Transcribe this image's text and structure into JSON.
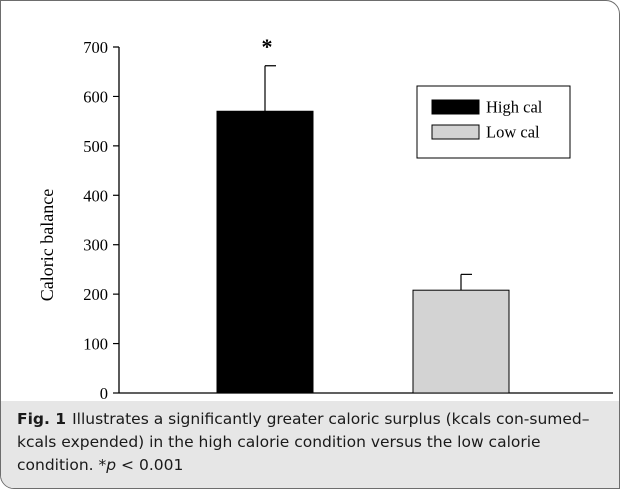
{
  "chart_data": {
    "type": "bar",
    "categories": [
      "High cal",
      "Low cal"
    ],
    "values": [
      570,
      208
    ],
    "errors": [
      92,
      32
    ],
    "colors": [
      "#000000",
      "#d3d3d3"
    ],
    "ylabel": "Caloric balance",
    "xlabel": "",
    "ylim": [
      0,
      700
    ],
    "yticks": [
      0,
      100,
      200,
      300,
      400,
      500,
      600,
      700
    ],
    "grid": false,
    "legend": {
      "placement": "top-right",
      "entries": [
        "High cal",
        "Low cal"
      ]
    },
    "annotations": [
      {
        "category": "High cal",
        "text": "*"
      }
    ]
  },
  "caption": {
    "label": "Fig. 1",
    "text_before": "Illustrates a significantly greater caloric surplus (kcals con-sumed–kcals expended) in the high calorie condition versus the low calorie condition. *",
    "p_symbol": "p",
    "text_after": " < 0.001"
  }
}
